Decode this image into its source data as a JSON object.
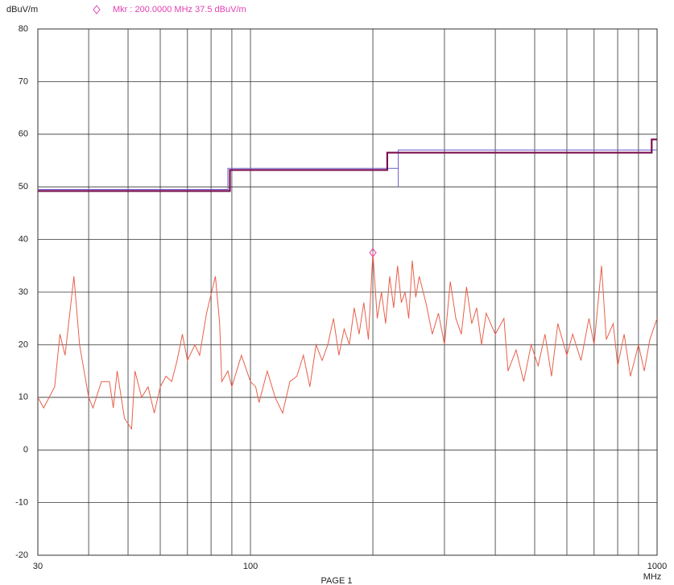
{
  "chart_data": {
    "type": "line",
    "y_label": "dBuV/m",
    "x_unit": "MHz",
    "footer": "PAGE 1",
    "marker": {
      "x": 200,
      "y": 37.5,
      "label": "Mkr :  200.0000 MHz   37.5 dBuV/m",
      "color": "#e040b0"
    },
    "xlog": true,
    "xlim": [
      30,
      1000
    ],
    "xticks": [
      30,
      100,
      1000
    ],
    "xminor": [
      40,
      50,
      60,
      70,
      80,
      90,
      200,
      300,
      400,
      500,
      600,
      700,
      800,
      900
    ],
    "ylim": [
      -20,
      80
    ],
    "yticks": [
      -20,
      -10,
      0,
      10,
      20,
      30,
      40,
      50,
      60,
      70,
      80
    ],
    "grid": true,
    "series": [
      {
        "color": "#e8604a",
        "width": 1,
        "x": [
          30,
          31,
          33,
          34,
          35,
          36.8,
          38,
          40,
          41,
          43,
          45,
          46,
          47,
          49,
          51,
          52,
          54,
          56,
          58,
          60,
          62,
          64,
          66,
          68,
          70,
          73,
          75,
          78,
          82,
          84,
          85,
          88,
          90,
          95,
          100,
          103,
          105,
          110,
          115,
          120,
          125,
          130,
          135,
          140,
          145,
          150,
          155,
          160,
          165,
          170,
          175,
          180,
          185,
          190,
          195,
          200,
          205,
          210,
          215,
          220,
          225,
          230,
          235,
          240,
          245,
          250,
          255,
          260,
          270,
          280,
          290,
          300,
          310,
          320,
          330,
          340,
          350,
          360,
          370,
          380,
          400,
          420,
          430,
          450,
          470,
          490,
          510,
          530,
          550,
          570,
          600,
          620,
          650,
          680,
          700,
          730,
          750,
          780,
          800,
          830,
          860,
          900,
          930,
          960,
          1000
        ],
        "values": [
          10,
          8,
          12,
          22,
          18,
          33,
          20,
          10,
          8,
          13,
          13,
          8,
          15,
          6,
          4,
          15,
          10,
          12,
          7,
          12,
          14,
          13,
          17,
          22,
          17,
          20,
          18,
          26,
          33,
          24,
          13,
          15,
          12,
          18,
          13,
          12,
          9,
          15,
          10,
          7,
          13,
          14,
          18,
          12,
          20,
          17,
          20,
          25,
          18,
          23,
          20,
          27,
          22,
          28,
          21,
          37.5,
          25,
          30,
          24,
          33,
          27,
          35,
          28,
          30,
          25,
          36,
          29,
          33,
          28,
          22,
          26,
          20,
          32,
          25,
          22,
          31,
          24,
          27,
          20,
          26,
          22,
          25,
          15,
          19,
          13,
          20,
          16,
          22,
          14,
          24,
          18,
          22,
          17,
          25,
          20,
          35,
          21,
          24,
          16,
          22,
          14,
          20,
          15,
          21,
          25
        ]
      },
      {
        "color": "#6a5acd",
        "width": 1,
        "x": [
          30,
          88,
          88,
          231,
          231,
          231,
          1000
        ],
        "values": [
          49.5,
          49.5,
          53.5,
          53.5,
          50,
          57,
          57
        ]
      },
      {
        "color": "#7a1050",
        "width": 2.2,
        "x": [
          30,
          89,
          89,
          217,
          217,
          970,
          970,
          1000
        ],
        "values": [
          49.2,
          49.2,
          53.2,
          53.2,
          56.5,
          56.5,
          59,
          59
        ]
      }
    ]
  }
}
